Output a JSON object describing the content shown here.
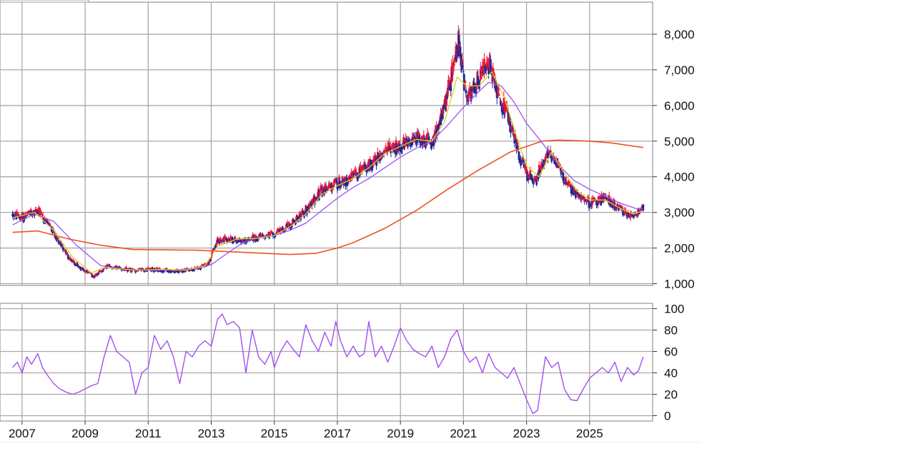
{
  "colors": {
    "candle_up": "#e8163a",
    "candle_down": "#102a9e",
    "ma_short": "#d8d020",
    "ma_mid": "#a050f0",
    "ma_long": "#f0501e",
    "rsi": "#a050f0",
    "grid": "#a8a8a8",
    "frame": "#808080"
  },
  "chart_data": [
    {
      "type": "candlestick",
      "title": "",
      "xlabel": "",
      "ylabel": "",
      "xlim": [
        2006.3,
        2027.0
      ],
      "ylim": [
        950,
        8900
      ],
      "yticks": [
        1000,
        2000,
        3000,
        4000,
        5000,
        6000,
        7000,
        8000
      ],
      "ytick_labels": [
        "1,000",
        "2,000",
        "3,000",
        "4,000",
        "5,000",
        "6,000",
        "7,000",
        "8,000"
      ],
      "xticks": [
        2007,
        2009,
        2011,
        2013,
        2015,
        2017,
        2019,
        2021,
        2023,
        2025
      ],
      "grid": true,
      "price_path": [
        [
          2006.7,
          2950
        ],
        [
          2007.0,
          2850
        ],
        [
          2007.5,
          3050
        ],
        [
          2008.0,
          2450
        ],
        [
          2008.5,
          1700
        ],
        [
          2009.0,
          1350
        ],
        [
          2009.3,
          1200
        ],
        [
          2009.7,
          1500
        ],
        [
          2010.0,
          1450
        ],
        [
          2010.5,
          1370
        ],
        [
          2011.0,
          1400
        ],
        [
          2011.5,
          1380
        ],
        [
          2012.0,
          1350
        ],
        [
          2012.5,
          1420
        ],
        [
          2012.9,
          1550
        ],
        [
          2013.2,
          2200
        ],
        [
          2013.5,
          2250
        ],
        [
          2014.0,
          2200
        ],
        [
          2014.5,
          2300
        ],
        [
          2015.0,
          2400
        ],
        [
          2015.5,
          2650
        ],
        [
          2016.0,
          3050
        ],
        [
          2016.5,
          3600
        ],
        [
          2017.0,
          3800
        ],
        [
          2017.5,
          4000
        ],
        [
          2018.0,
          4300
        ],
        [
          2018.5,
          4700
        ],
        [
          2019.0,
          4900
        ],
        [
          2019.5,
          5100
        ],
        [
          2020.0,
          4950
        ],
        [
          2020.3,
          5700
        ],
        [
          2020.6,
          6700
        ],
        [
          2020.85,
          7800
        ],
        [
          2021.1,
          6200
        ],
        [
          2021.5,
          6800
        ],
        [
          2021.85,
          7200
        ],
        [
          2022.1,
          6300
        ],
        [
          2022.4,
          5700
        ],
        [
          2022.7,
          4800
        ],
        [
          2023.0,
          4100
        ],
        [
          2023.3,
          3900
        ],
        [
          2023.7,
          4750
        ],
        [
          2024.0,
          4300
        ],
        [
          2024.3,
          3800
        ],
        [
          2024.7,
          3400
        ],
        [
          2025.0,
          3250
        ],
        [
          2025.5,
          3400
        ],
        [
          2025.9,
          3150
        ],
        [
          2026.2,
          2900
        ],
        [
          2026.5,
          2950
        ],
        [
          2026.7,
          3150
        ]
      ],
      "series": [
        {
          "values": [
            [
              2006.7,
              2440
            ],
            [
              2007.5,
              2480
            ],
            [
              2008.5,
              2250
            ],
            [
              2009.5,
              2080
            ],
            [
              2010.5,
              1960
            ],
            [
              2011.5,
              1950
            ],
            [
              2012.5,
              1940
            ],
            [
              2013.5,
              1900
            ],
            [
              2014.5,
              1860
            ],
            [
              2015.5,
              1820
            ],
            [
              2016.3,
              1850
            ],
            [
              2017.0,
              2000
            ],
            [
              2017.5,
              2150
            ],
            [
              2018.5,
              2550
            ],
            [
              2019.5,
              3050
            ],
            [
              2020.5,
              3650
            ],
            [
              2021.5,
              4200
            ],
            [
              2022.5,
              4700
            ],
            [
              2023.5,
              5000
            ],
            [
              2024.0,
              5030
            ],
            [
              2025.0,
              5000
            ],
            [
              2025.7,
              4950
            ],
            [
              2026.7,
              4820
            ]
          ]
        },
        {
          "values": [
            [
              2006.7,
              2650
            ],
            [
              2007.4,
              2950
            ],
            [
              2008.0,
              2750
            ],
            [
              2008.7,
              2100
            ],
            [
              2009.5,
              1500
            ],
            [
              2010.5,
              1380
            ],
            [
              2011.5,
              1380
            ],
            [
              2012.5,
              1420
            ],
            [
              2013.0,
              1530
            ],
            [
              2013.5,
              1850
            ],
            [
              2014.0,
              2150
            ],
            [
              2014.5,
              2300
            ],
            [
              2015.0,
              2350
            ],
            [
              2015.5,
              2500
            ],
            [
              2016.0,
              2700
            ],
            [
              2016.5,
              3050
            ],
            [
              2017.0,
              3400
            ],
            [
              2017.5,
              3700
            ],
            [
              2018.0,
              3950
            ],
            [
              2018.5,
              4250
            ],
            [
              2019.0,
              4550
            ],
            [
              2019.5,
              4800
            ],
            [
              2020.0,
              5000
            ],
            [
              2020.5,
              5450
            ],
            [
              2021.0,
              5950
            ],
            [
              2021.5,
              6400
            ],
            [
              2021.8,
              6650
            ],
            [
              2022.2,
              6550
            ],
            [
              2022.6,
              6100
            ],
            [
              2023.0,
              5500
            ],
            [
              2023.5,
              4950
            ],
            [
              2024.0,
              4350
            ],
            [
              2024.5,
              3900
            ],
            [
              2025.0,
              3650
            ],
            [
              2025.5,
              3450
            ],
            [
              2026.0,
              3250
            ],
            [
              2026.5,
              3100
            ],
            [
              2026.7,
              3100
            ]
          ]
        },
        {
          "values": [
            [
              2006.7,
              2850
            ],
            [
              2007.4,
              3000
            ],
            [
              2008.0,
              2500
            ],
            [
              2008.6,
              1750
            ],
            [
              2009.2,
              1300
            ],
            [
              2009.6,
              1450
            ],
            [
              2010.0,
              1420
            ],
            [
              2010.6,
              1380
            ],
            [
              2011.4,
              1400
            ],
            [
              2012.2,
              1380
            ],
            [
              2012.8,
              1500
            ],
            [
              2013.2,
              2050
            ],
            [
              2013.8,
              2250
            ],
            [
              2014.5,
              2280
            ],
            [
              2015.0,
              2350
            ],
            [
              2015.5,
              2600
            ],
            [
              2016.0,
              2950
            ],
            [
              2016.5,
              3500
            ],
            [
              2017.0,
              3750
            ],
            [
              2017.5,
              3950
            ],
            [
              2018.0,
              4250
            ],
            [
              2018.5,
              4650
            ],
            [
              2019.0,
              4850
            ],
            [
              2019.5,
              5050
            ],
            [
              2020.0,
              5000
            ],
            [
              2020.4,
              5550
            ],
            [
              2020.8,
              6800
            ],
            [
              2021.1,
              6550
            ],
            [
              2021.5,
              6550
            ],
            [
              2021.9,
              6950
            ],
            [
              2022.3,
              6200
            ],
            [
              2022.7,
              5100
            ],
            [
              2023.0,
              4300
            ],
            [
              2023.4,
              4000
            ],
            [
              2023.8,
              4700
            ],
            [
              2024.2,
              4100
            ],
            [
              2024.6,
              3600
            ],
            [
              2025.0,
              3350
            ],
            [
              2025.5,
              3350
            ],
            [
              2026.0,
              3100
            ],
            [
              2026.4,
              2950
            ],
            [
              2026.7,
              3050
            ]
          ]
        }
      ]
    },
    {
      "type": "line",
      "title": "",
      "xlabel": "",
      "ylabel": "",
      "xlim": [
        2006.3,
        2027.0
      ],
      "ylim": [
        -5,
        105
      ],
      "yticks": [
        0,
        20,
        40,
        60,
        80,
        100
      ],
      "ytick_labels": [
        "0",
        "20",
        "40",
        "60",
        "80",
        "100"
      ],
      "xticks": [
        2007,
        2009,
        2011,
        2013,
        2015,
        2017,
        2019,
        2021,
        2023,
        2025
      ],
      "xtick_labels": [
        "2007",
        "2009",
        "2011",
        "2013",
        "2015",
        "2017",
        "2019",
        "2021",
        "2023",
        "2025"
      ],
      "grid": true,
      "series": [
        {
          "values": [
            [
              2006.7,
              45
            ],
            [
              2006.85,
              50
            ],
            [
              2007.0,
              40
            ],
            [
              2007.15,
              55
            ],
            [
              2007.3,
              48
            ],
            [
              2007.5,
              58
            ],
            [
              2007.65,
              45
            ],
            [
              2007.8,
              38
            ],
            [
              2008.0,
              30
            ],
            [
              2008.2,
              25
            ],
            [
              2008.4,
              22
            ],
            [
              2008.6,
              20
            ],
            [
              2008.8,
              22
            ],
            [
              2009.0,
              25
            ],
            [
              2009.2,
              28
            ],
            [
              2009.4,
              30
            ],
            [
              2009.6,
              55
            ],
            [
              2009.8,
              75
            ],
            [
              2010.0,
              60
            ],
            [
              2010.2,
              55
            ],
            [
              2010.4,
              50
            ],
            [
              2010.6,
              20
            ],
            [
              2010.8,
              40
            ],
            [
              2011.0,
              45
            ],
            [
              2011.2,
              75
            ],
            [
              2011.4,
              62
            ],
            [
              2011.6,
              70
            ],
            [
              2011.8,
              55
            ],
            [
              2012.0,
              30
            ],
            [
              2012.2,
              60
            ],
            [
              2012.4,
              55
            ],
            [
              2012.6,
              65
            ],
            [
              2012.8,
              70
            ],
            [
              2013.0,
              65
            ],
            [
              2013.2,
              90
            ],
            [
              2013.35,
              95
            ],
            [
              2013.5,
              85
            ],
            [
              2013.7,
              88
            ],
            [
              2013.9,
              82
            ],
            [
              2014.1,
              40
            ],
            [
              2014.3,
              80
            ],
            [
              2014.5,
              55
            ],
            [
              2014.7,
              48
            ],
            [
              2014.9,
              60
            ],
            [
              2015.0,
              45
            ],
            [
              2015.2,
              60
            ],
            [
              2015.4,
              70
            ],
            [
              2015.6,
              62
            ],
            [
              2015.8,
              55
            ],
            [
              2016.0,
              85
            ],
            [
              2016.2,
              70
            ],
            [
              2016.4,
              60
            ],
            [
              2016.6,
              78
            ],
            [
              2016.8,
              65
            ],
            [
              2016.95,
              88
            ],
            [
              2017.1,
              70
            ],
            [
              2017.3,
              55
            ],
            [
              2017.5,
              65
            ],
            [
              2017.7,
              55
            ],
            [
              2017.85,
              58
            ],
            [
              2018.0,
              88
            ],
            [
              2018.2,
              55
            ],
            [
              2018.4,
              65
            ],
            [
              2018.6,
              50
            ],
            [
              2018.8,
              65
            ],
            [
              2019.0,
              82
            ],
            [
              2019.2,
              70
            ],
            [
              2019.4,
              62
            ],
            [
              2019.6,
              58
            ],
            [
              2019.8,
              55
            ],
            [
              2020.0,
              65
            ],
            [
              2020.2,
              45
            ],
            [
              2020.4,
              55
            ],
            [
              2020.6,
              72
            ],
            [
              2020.8,
              80
            ],
            [
              2021.0,
              60
            ],
            [
              2021.2,
              50
            ],
            [
              2021.4,
              55
            ],
            [
              2021.6,
              40
            ],
            [
              2021.8,
              58
            ],
            [
              2022.0,
              45
            ],
            [
              2022.2,
              40
            ],
            [
              2022.4,
              35
            ],
            [
              2022.6,
              45
            ],
            [
              2022.8,
              30
            ],
            [
              2023.0,
              15
            ],
            [
              2023.2,
              2
            ],
            [
              2023.35,
              5
            ],
            [
              2023.6,
              55
            ],
            [
              2023.8,
              45
            ],
            [
              2024.0,
              50
            ],
            [
              2024.2,
              25
            ],
            [
              2024.4,
              15
            ],
            [
              2024.6,
              14
            ],
            [
              2024.8,
              25
            ],
            [
              2025.0,
              35
            ],
            [
              2025.2,
              40
            ],
            [
              2025.4,
              45
            ],
            [
              2025.6,
              40
            ],
            [
              2025.8,
              50
            ],
            [
              2026.0,
              32
            ],
            [
              2026.2,
              45
            ],
            [
              2026.4,
              38
            ],
            [
              2026.55,
              42
            ],
            [
              2026.7,
              55
            ]
          ]
        }
      ]
    }
  ]
}
